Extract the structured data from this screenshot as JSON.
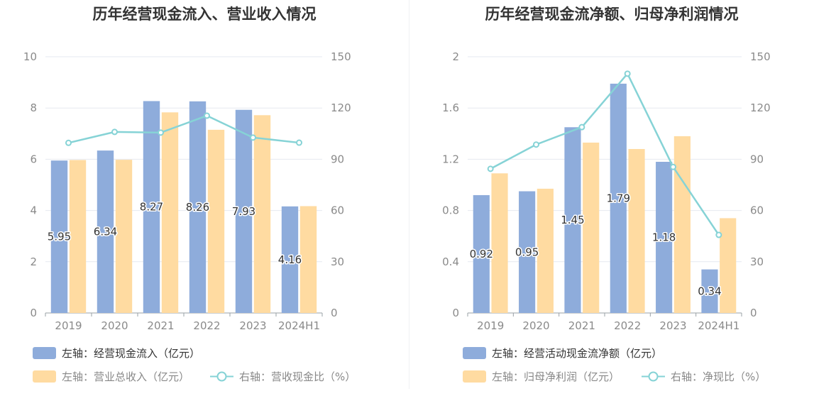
{
  "colors": {
    "primary_bar": "#8eacdb",
    "secondary_bar": "#ffdba1",
    "line": "#86d3d6",
    "grid": "#e6e9f0",
    "axis": "#9aa0a6",
    "legend_text_primary": "#333333",
    "legend_text_secondary": "#888888"
  },
  "chart_data": [
    {
      "type": "bar",
      "title": "历年经营现金流入、营业收入情况",
      "categories": [
        "2019",
        "2020",
        "2021",
        "2022",
        "2023",
        "2024H1"
      ],
      "series": [
        {
          "name": "左轴：经营现金流入（亿元）",
          "axis": "left",
          "type": "bar",
          "values": [
            5.95,
            6.34,
            8.27,
            8.26,
            7.93,
            4.16
          ],
          "labels": [
            "5.95",
            "6.34",
            "8.27",
            "8.26",
            "7.93",
            "4.16"
          ]
        },
        {
          "name": "左轴：营业总收入（亿元）",
          "axis": "left",
          "type": "bar",
          "values": [
            5.97,
            5.98,
            7.83,
            7.15,
            7.72,
            4.17
          ]
        },
        {
          "name": "右轴：营收现金比（%）",
          "axis": "right",
          "type": "line",
          "values": [
            99.6,
            106.0,
            105.6,
            115.5,
            102.7,
            99.7
          ]
        }
      ],
      "left_axis": {
        "min": 0,
        "max": 10,
        "ticks": [
          "0",
          "2",
          "4",
          "6",
          "8",
          "10"
        ]
      },
      "right_axis": {
        "min": 0,
        "max": 150,
        "ticks": [
          "0",
          "30",
          "60",
          "90",
          "120",
          "150"
        ]
      },
      "grid": true,
      "legend_position": "bottom-left"
    },
    {
      "type": "bar",
      "title": "历年经营现金流净额、归母净利润情况",
      "categories": [
        "2019",
        "2020",
        "2021",
        "2022",
        "2023",
        "2024H1"
      ],
      "series": [
        {
          "name": "左轴：经营活动现金流净额（亿元）",
          "axis": "left",
          "type": "bar",
          "values": [
            0.92,
            0.95,
            1.45,
            1.79,
            1.18,
            0.34
          ],
          "labels": [
            "0.92",
            "0.95",
            "1.45",
            "1.79",
            "1.18",
            "0.34"
          ]
        },
        {
          "name": "左轴：归母净利润（亿元）",
          "axis": "left",
          "type": "bar",
          "values": [
            1.09,
            0.97,
            1.33,
            1.28,
            1.38,
            0.74
          ]
        },
        {
          "name": "右轴：净现比（%）",
          "axis": "right",
          "type": "line",
          "values": [
            84.4,
            98.6,
            108.8,
            140.1,
            85.5,
            45.7
          ]
        }
      ],
      "left_axis": {
        "min": 0,
        "max": 2,
        "ticks": [
          "0",
          "0.4",
          "0.8",
          "1.2",
          "1.6",
          "2"
        ]
      },
      "right_axis": {
        "min": 0,
        "max": 150,
        "ticks": [
          "0",
          "30",
          "60",
          "90",
          "120",
          "150"
        ]
      },
      "grid": true,
      "legend_position": "bottom-left"
    }
  ]
}
